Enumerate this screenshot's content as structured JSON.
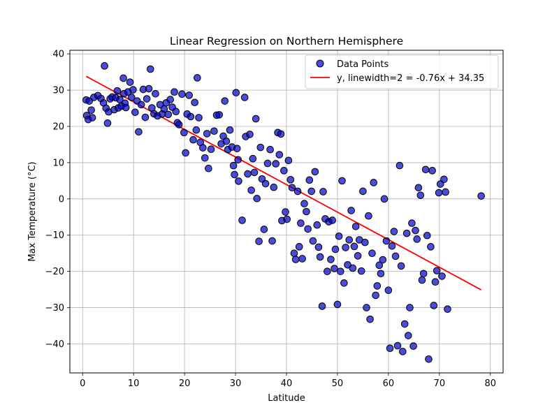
{
  "chart_data": {
    "type": "scatter",
    "title": "Linear Regression on Northern Hemisphere",
    "xlabel": "Latitude",
    "ylabel": "Max Temperature (°C)",
    "xlim": [
      -2.5,
      82.5
    ],
    "ylim": [
      -48,
      41
    ],
    "xticks": [
      0,
      10,
      20,
      30,
      40,
      50,
      60,
      70,
      80
    ],
    "yticks": [
      -40,
      -30,
      -20,
      -10,
      0,
      10,
      20,
      30,
      40
    ],
    "xtick_labels": [
      "0",
      "10",
      "20",
      "30",
      "40",
      "50",
      "60",
      "70",
      "80"
    ],
    "ytick_labels": [
      "−40",
      "−30",
      "−20",
      "−10",
      "0",
      "10",
      "20",
      "30",
      "40"
    ],
    "grid": true,
    "legend_position": "top-right",
    "colors": {
      "points": "#0000cc",
      "point_edge": "#000000",
      "line": "#ff0000",
      "grid": "#b0b0b0"
    },
    "series": [
      {
        "name": "Data Points",
        "type": "scatter",
        "points": [
          [
            0.7,
            27.3
          ],
          [
            0.8,
            23.0
          ],
          [
            1.1,
            21.9
          ],
          [
            1.3,
            27.0
          ],
          [
            1.7,
            24.5
          ],
          [
            1.9,
            22.4
          ],
          [
            2.2,
            28.0
          ],
          [
            3.0,
            28.5
          ],
          [
            3.6,
            27.7
          ],
          [
            4.1,
            26.5
          ],
          [
            4.3,
            36.7
          ],
          [
            4.6,
            25.0
          ],
          [
            4.9,
            20.9
          ],
          [
            5.1,
            24.0
          ],
          [
            5.4,
            27.6
          ],
          [
            5.8,
            28.1
          ],
          [
            6.2,
            24.6
          ],
          [
            6.5,
            27.9
          ],
          [
            6.8,
            29.8
          ],
          [
            7.0,
            25.1
          ],
          [
            7.3,
            27.4
          ],
          [
            7.6,
            25.6
          ],
          [
            8.0,
            33.3
          ],
          [
            8.1,
            29.0
          ],
          [
            8.3,
            26.4
          ],
          [
            8.5,
            25.2
          ],
          [
            8.9,
            29.5
          ],
          [
            9.3,
            32.2
          ],
          [
            9.6,
            28.0
          ],
          [
            9.9,
            30.1
          ],
          [
            10.3,
            23.9
          ],
          [
            10.7,
            27.0
          ],
          [
            11.0,
            18.5
          ],
          [
            11.5,
            26.0
          ],
          [
            11.9,
            30.2
          ],
          [
            12.3,
            22.5
          ],
          [
            12.6,
            27.6
          ],
          [
            13.0,
            30.4
          ],
          [
            13.3,
            35.8
          ],
          [
            13.6,
            25.1
          ],
          [
            14.0,
            23.5
          ],
          [
            14.3,
            29.0
          ],
          [
            14.7,
            22.9
          ],
          [
            15.2,
            26.0
          ],
          [
            15.6,
            23.4
          ],
          [
            16.0,
            24.8
          ],
          [
            16.4,
            26.5
          ],
          [
            16.8,
            23.3
          ],
          [
            17.2,
            27.4
          ],
          [
            17.6,
            25.3
          ],
          [
            18.0,
            29.5
          ],
          [
            18.3,
            24.1
          ],
          [
            18.6,
            21.0
          ],
          [
            18.9,
            20.5
          ],
          [
            19.5,
            28.9
          ],
          [
            19.9,
            18.3
          ],
          [
            20.2,
            12.7
          ],
          [
            20.5,
            23.4
          ],
          [
            20.9,
            28.6
          ],
          [
            21.2,
            22.7
          ],
          [
            21.7,
            16.3
          ],
          [
            22.0,
            26.6
          ],
          [
            22.3,
            19.0
          ],
          [
            22.5,
            33.4
          ],
          [
            22.8,
            22.4
          ],
          [
            23.1,
            15.6
          ],
          [
            23.6,
            14.1
          ],
          [
            24.0,
            11.3
          ],
          [
            24.4,
            18.0
          ],
          [
            24.7,
            8.4
          ],
          [
            25.2,
            13.7
          ],
          [
            25.8,
            18.7
          ],
          [
            26.3,
            23.1
          ],
          [
            26.8,
            23.2
          ],
          [
            27.2,
            15.2
          ],
          [
            27.6,
            17.3
          ],
          [
            27.9,
            27.0
          ],
          [
            28.2,
            15.9
          ],
          [
            28.5,
            13.6
          ],
          [
            28.9,
            19.0
          ],
          [
            29.3,
            14.3
          ],
          [
            29.6,
            9.2
          ],
          [
            29.8,
            6.7
          ],
          [
            30.1,
            29.3
          ],
          [
            30.3,
            13.9
          ],
          [
            30.5,
            10.8
          ],
          [
            30.6,
            4.9
          ],
          [
            31.3,
            -5.9
          ],
          [
            31.8,
            28.0
          ],
          [
            32.0,
            17.2
          ],
          [
            32.4,
            6.9
          ],
          [
            32.8,
            17.8
          ],
          [
            33.1,
            2.4
          ],
          [
            33.4,
            11.1
          ],
          [
            33.7,
            7.3
          ],
          [
            34.0,
            22.1
          ],
          [
            34.2,
            0.1
          ],
          [
            34.6,
            -11.7
          ],
          [
            34.9,
            14.2
          ],
          [
            35.2,
            5.5
          ],
          [
            35.6,
            -8.4
          ],
          [
            35.9,
            4.2
          ],
          [
            36.3,
            9.8
          ],
          [
            36.8,
            13.6
          ],
          [
            37.2,
            -11.6
          ],
          [
            37.5,
            3.2
          ],
          [
            37.9,
            9.7
          ],
          [
            38.3,
            18.3
          ],
          [
            38.6,
            12.2
          ],
          [
            38.9,
            17.9
          ],
          [
            39.1,
            -6.0
          ],
          [
            39.5,
            7.8
          ],
          [
            39.8,
            -3.6
          ],
          [
            40.1,
            -5.6
          ],
          [
            40.4,
            10.6
          ],
          [
            40.8,
            5.3
          ],
          [
            41.1,
            3.1
          ],
          [
            41.5,
            -15.0
          ],
          [
            41.8,
            -16.7
          ],
          [
            42.2,
            2.1
          ],
          [
            42.5,
            -13.2
          ],
          [
            42.8,
            -6.7
          ],
          [
            43.1,
            -16.5
          ],
          [
            43.5,
            -1.3
          ],
          [
            43.9,
            -3.5
          ],
          [
            44.2,
            -8.3
          ],
          [
            44.5,
            5.2
          ],
          [
            44.9,
            2.1
          ],
          [
            45.2,
            -11.6
          ],
          [
            45.6,
            7.5
          ],
          [
            46.0,
            -7.2
          ],
          [
            46.3,
            -13.3
          ],
          [
            46.6,
            -16.0
          ],
          [
            47.0,
            -29.6
          ],
          [
            47.2,
            2.0
          ],
          [
            47.6,
            -5.5
          ],
          [
            48.0,
            -20.0
          ],
          [
            48.3,
            -6.3
          ],
          [
            48.7,
            -16.7
          ],
          [
            49.0,
            -5.9
          ],
          [
            49.4,
            -19.2
          ],
          [
            49.6,
            -13.9
          ],
          [
            50.0,
            -29.1
          ],
          [
            50.3,
            -10.3
          ],
          [
            50.6,
            -20.0
          ],
          [
            50.9,
            5.0
          ],
          [
            51.3,
            -23.2
          ],
          [
            51.6,
            -13.4
          ],
          [
            52.0,
            -18.2
          ],
          [
            52.3,
            -11.3
          ],
          [
            52.7,
            -3.2
          ],
          [
            53.0,
            -19.1
          ],
          [
            53.3,
            -13.1
          ],
          [
            53.6,
            -7.6
          ],
          [
            54.0,
            -15.7
          ],
          [
            54.3,
            -11.3
          ],
          [
            54.7,
            -19.9
          ],
          [
            55.0,
            2.1
          ],
          [
            55.4,
            -12.0
          ],
          [
            55.7,
            -30.0
          ],
          [
            56.1,
            -4.7
          ],
          [
            56.4,
            -33.2
          ],
          [
            56.8,
            -15.0
          ],
          [
            57.1,
            4.5
          ],
          [
            57.5,
            -26.6
          ],
          [
            57.8,
            -24.0
          ],
          [
            58.2,
            -18.3
          ],
          [
            58.5,
            -20.6
          ],
          [
            58.9,
            -16.8
          ],
          [
            59.2,
            0.0
          ],
          [
            59.6,
            -11.6
          ],
          [
            60.0,
            -25.2
          ],
          [
            60.3,
            -41.2
          ],
          [
            60.7,
            -13.0
          ],
          [
            61.1,
            -9.0
          ],
          [
            61.4,
            -15.8
          ],
          [
            61.8,
            -40.5
          ],
          [
            62.2,
            9.2
          ],
          [
            62.5,
            -18.5
          ],
          [
            62.8,
            -42.1
          ],
          [
            63.2,
            -34.5
          ],
          [
            63.6,
            -9.5
          ],
          [
            63.9,
            -37.7
          ],
          [
            64.2,
            -30.0
          ],
          [
            64.6,
            -6.7
          ],
          [
            64.9,
            -40.6
          ],
          [
            65.3,
            -8.7
          ],
          [
            65.6,
            -11.1
          ],
          [
            65.9,
            3.1
          ],
          [
            66.3,
            1.0
          ],
          [
            66.6,
            -22.4
          ],
          [
            66.9,
            -20.6
          ],
          [
            67.3,
            8.1
          ],
          [
            67.6,
            -10.1
          ],
          [
            67.9,
            -44.2
          ],
          [
            68.3,
            -13.2
          ],
          [
            68.6,
            7.8
          ],
          [
            68.9,
            -29.4
          ],
          [
            69.2,
            -22.9
          ],
          [
            69.5,
            -19.8
          ],
          [
            69.9,
            1.7
          ],
          [
            70.2,
            4.1
          ],
          [
            70.5,
            -21.3
          ],
          [
            70.9,
            5.4
          ],
          [
            71.2,
            1.9
          ],
          [
            71.6,
            -30.4
          ],
          [
            78.2,
            0.8
          ]
        ]
      },
      {
        "name": "y, linewidth=2 = -0.76x + 34.35",
        "type": "line",
        "slope": -0.76,
        "intercept": 34.35,
        "x_range": [
          0.7,
          78.2
        ]
      }
    ]
  }
}
